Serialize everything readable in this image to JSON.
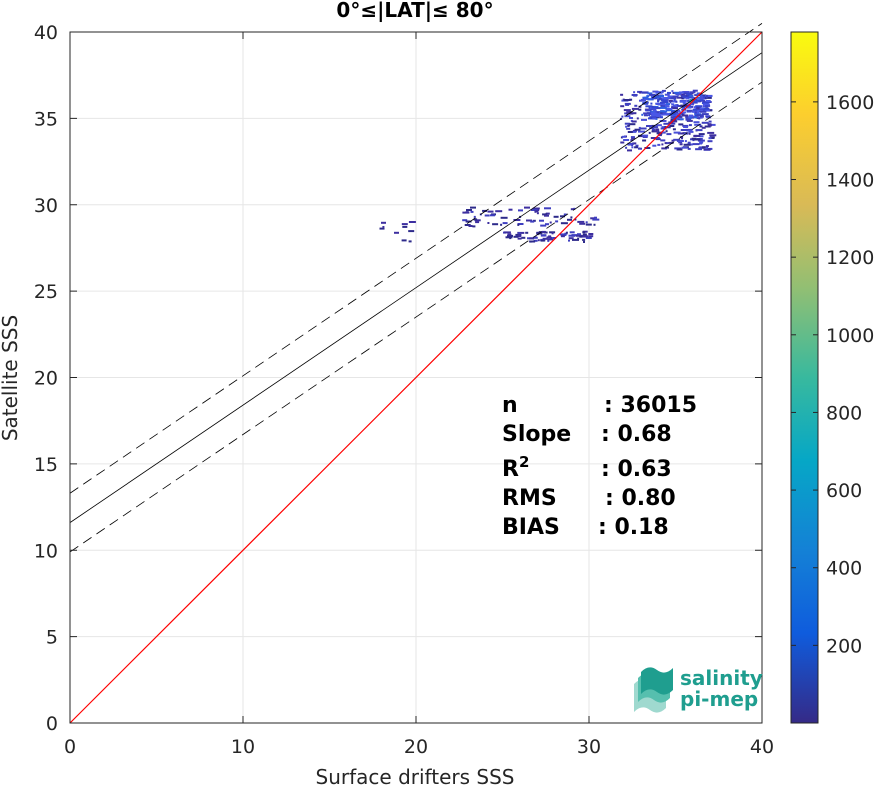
{
  "chart_data": {
    "type": "heatmap",
    "title": "0°≤|LAT|≤ 80°",
    "xlabel": "Surface drifters SSS",
    "ylabel": "Satellite SSS",
    "xlim": [
      0,
      40
    ],
    "ylim": [
      0,
      40
    ],
    "x_ticks": [
      "0",
      "10",
      "20",
      "30",
      "40"
    ],
    "y_ticks": [
      "0",
      "5",
      "10",
      "15",
      "20",
      "25",
      "30",
      "35",
      "40"
    ],
    "grid": true,
    "colorbar": {
      "colormap": "parula",
      "range": [
        0,
        1780
      ],
      "tick_values": [
        200,
        400,
        600,
        800,
        1000,
        1200,
        1400,
        1600
      ],
      "tick_labels": [
        "200",
        "400",
        "600",
        "800",
        "1000",
        "1200",
        "1400",
        "1600"
      ]
    },
    "lines": {
      "identity": {
        "intercept": 0,
        "slope": 1,
        "color": "#ff0000"
      },
      "fit": {
        "intercept": 11.6,
        "slope": 0.68,
        "color": "#000000"
      },
      "upper_band": {
        "intercept": 13.3,
        "slope": 0.68,
        "style": "dashed"
      },
      "lower_band": {
        "intercept": 9.9,
        "slope": 0.68,
        "style": "dashed"
      }
    },
    "density_regions": [
      {
        "x": [
          31.8,
          37.0
        ],
        "y": [
          33.2,
          36.7
        ],
        "level": "dense"
      },
      {
        "x": [
          33.0,
          36.8
        ],
        "y": [
          35.0,
          36.6
        ],
        "level": "peak"
      },
      {
        "x": [
          22.5,
          30.5
        ],
        "y": [
          28.8,
          29.9
        ],
        "level": "sparse"
      },
      {
        "x": [
          25.0,
          30.0
        ],
        "y": [
          27.9,
          28.5
        ],
        "level": "sparse"
      },
      {
        "x": [
          17.8,
          20.0
        ],
        "y": [
          27.6,
          29.5
        ],
        "level": "very-sparse"
      }
    ],
    "stats": [
      {
        "label": "n",
        "value": ": 36015"
      },
      {
        "label": "Slope",
        "value": ": 0.68"
      },
      {
        "label": "R",
        "superscript": "2",
        "value": ": 0.63"
      },
      {
        "label": "RMS",
        "value": ": 0.80"
      },
      {
        "label": "BIAS",
        "value": ": 0.18"
      }
    ]
  },
  "logo": {
    "line1": "salinity",
    "line2": "pi-mep"
  },
  "colors": {
    "identity_line": "#ff0000",
    "fit_line": "#000000",
    "grid": "#e6e6e6",
    "logo_teal": "#1f9e8f"
  }
}
